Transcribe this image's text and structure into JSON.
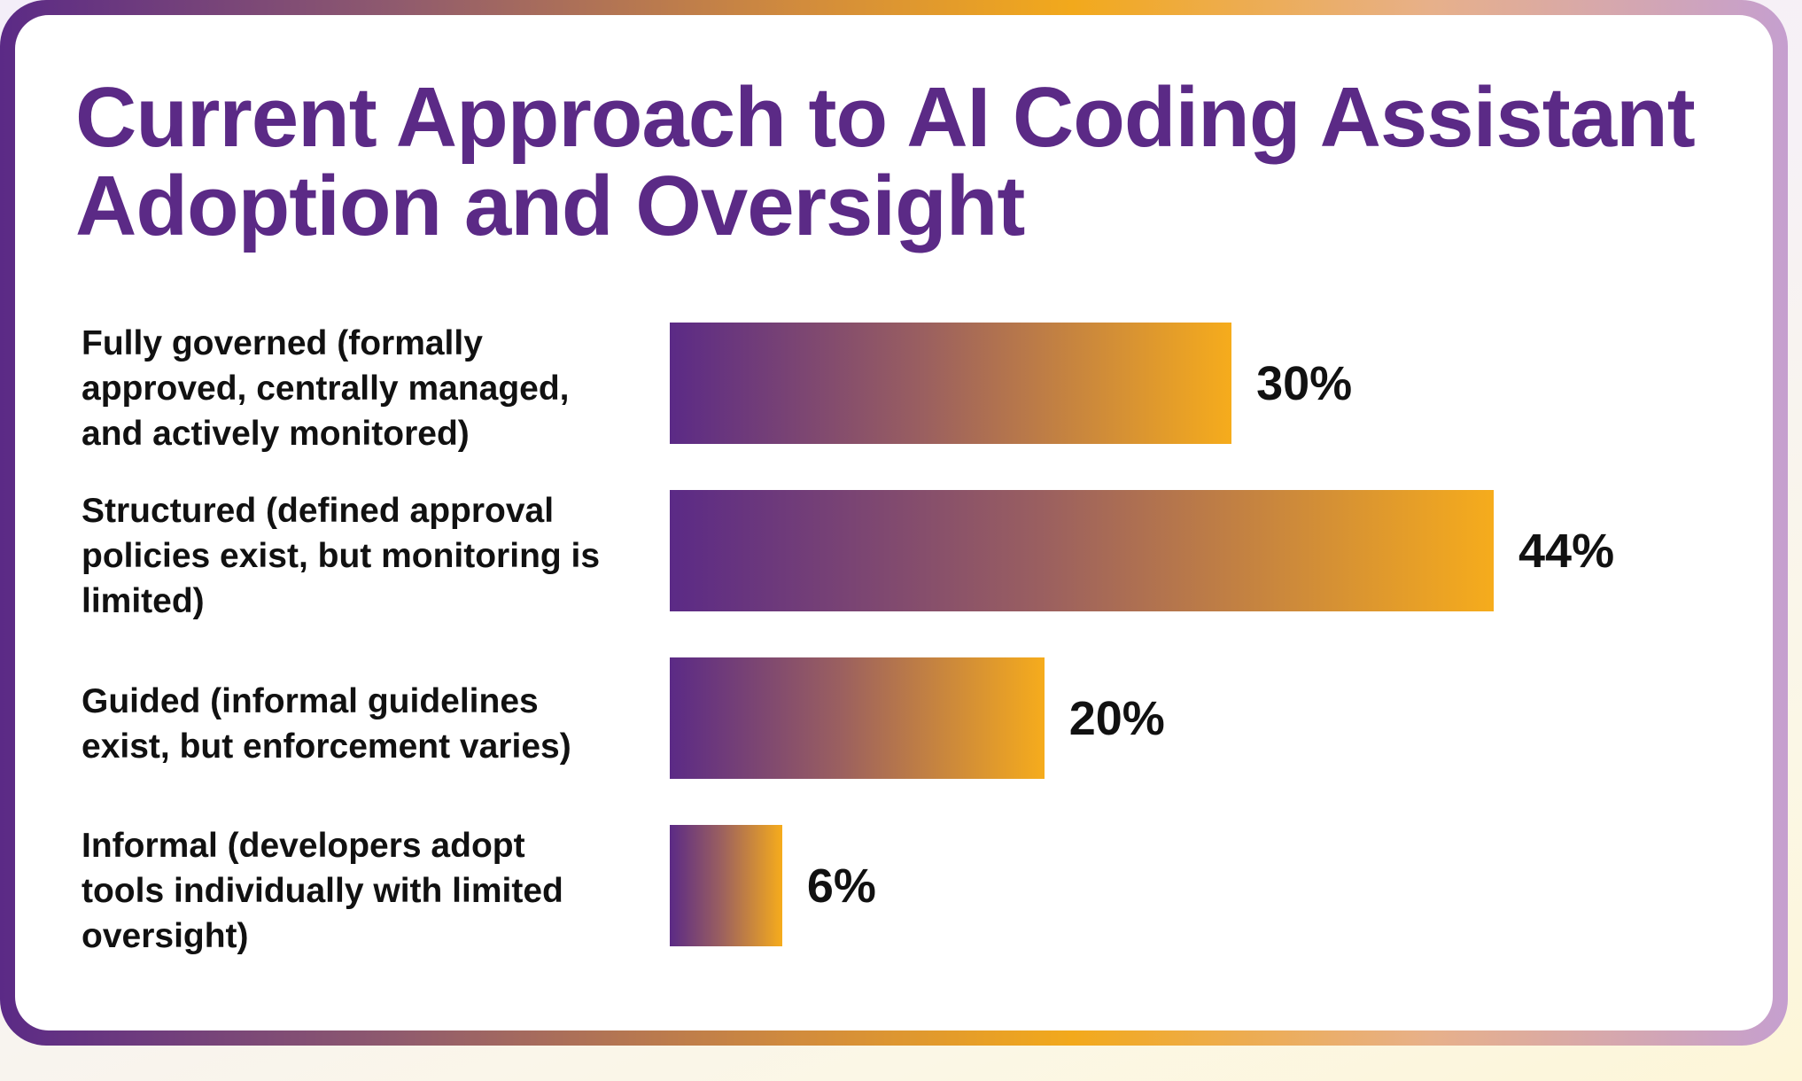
{
  "chart_data": {
    "type": "bar",
    "orientation": "horizontal",
    "title": "Current Approach to AI Coding Assistant Adoption and Oversight",
    "categories": [
      "Fully governed (formally approved, centrally managed, and actively monitored)",
      "Structured (defined approval policies exist, but monitoring is limited)",
      "Guided (informal guidelines exist, but enforcement varies)",
      "Informal (developers adopt tools individually with limited oversight)"
    ],
    "values": [
      30,
      44,
      20,
      6
    ],
    "value_labels": [
      "30%",
      "44%",
      "20%",
      "6%"
    ],
    "xlim": [
      0,
      44
    ],
    "grid": false,
    "colors": {
      "title": "#5b2a86",
      "bar_start": "#5b2a86",
      "bar_end": "#f6ac1c"
    }
  }
}
